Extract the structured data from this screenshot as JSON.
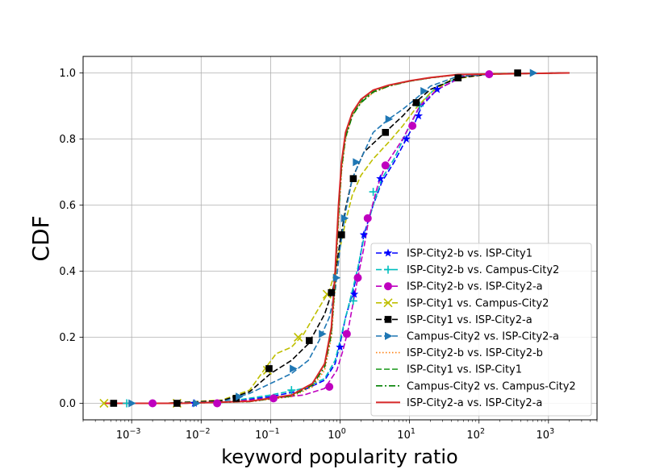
{
  "chart_data": {
    "type": "line",
    "xscale": "log",
    "xlabel": "keyword popularity ratio",
    "ylabel": "CDF",
    "xlim": [
      0.0002,
      5000
    ],
    "ylim": [
      -0.05,
      1.05
    ],
    "grid": true,
    "legend_position": "lower-right",
    "x_ticks": [
      {
        "value": 0.001,
        "base": "10",
        "exp": "−3"
      },
      {
        "value": 0.01,
        "base": "10",
        "exp": "−2"
      },
      {
        "value": 0.1,
        "base": "10",
        "exp": "−1"
      },
      {
        "value": 1,
        "base": "10",
        "exp": "0"
      },
      {
        "value": 10,
        "base": "10",
        "exp": "1"
      },
      {
        "value": 100,
        "base": "10",
        "exp": "2"
      },
      {
        "value": 1000,
        "base": "10",
        "exp": "3"
      }
    ],
    "y_ticks": [
      {
        "value": 0.0,
        "label": "0.0"
      },
      {
        "value": 0.2,
        "label": "0.2"
      },
      {
        "value": 0.4,
        "label": "0.4"
      },
      {
        "value": 0.6,
        "label": "0.6"
      },
      {
        "value": 0.8,
        "label": "0.8"
      },
      {
        "value": 1.0,
        "label": "1.0"
      }
    ],
    "series": [
      {
        "name": "ISP-City2-b vs. ISP-City1",
        "color": "#0000ff",
        "dash": "dashed",
        "marker": "star",
        "points": [
          [
            0.0004,
            0.0
          ],
          [
            0.003,
            0.0
          ],
          [
            0.02,
            0.003
          ],
          [
            0.1,
            0.02
          ],
          [
            0.3,
            0.04
          ],
          [
            0.6,
            0.07
          ],
          [
            0.85,
            0.12
          ],
          [
            1.0,
            0.18
          ],
          [
            1.2,
            0.26
          ],
          [
            1.5,
            0.33
          ],
          [
            1.8,
            0.4
          ],
          [
            2.2,
            0.51
          ],
          [
            3.0,
            0.6
          ],
          [
            4.0,
            0.67
          ],
          [
            6.0,
            0.73
          ],
          [
            9.0,
            0.8
          ],
          [
            12.0,
            0.85
          ],
          [
            15.0,
            0.9
          ],
          [
            25.0,
            0.95
          ],
          [
            60.0,
            0.99
          ],
          [
            200.0,
            0.998
          ],
          [
            2000.0,
            1.0
          ]
        ],
        "markers": [
          [
            0.008,
            0.0
          ],
          [
            1.0,
            0.17
          ],
          [
            1.6,
            0.33
          ],
          [
            2.2,
            0.51
          ],
          [
            3.8,
            0.68
          ],
          [
            9.0,
            0.8
          ],
          [
            13.5,
            0.87
          ],
          [
            25.0,
            0.95
          ]
        ]
      },
      {
        "name": "ISP-City2-b vs. Campus-City2",
        "color": "#00bfbf",
        "dash": "dashed",
        "marker": "plus",
        "points": [
          [
            0.0004,
            0.0
          ],
          [
            0.003,
            0.0
          ],
          [
            0.02,
            0.003
          ],
          [
            0.1,
            0.025
          ],
          [
            0.3,
            0.045
          ],
          [
            0.6,
            0.075
          ],
          [
            0.85,
            0.13
          ],
          [
            1.0,
            0.19
          ],
          [
            1.2,
            0.26
          ],
          [
            1.5,
            0.34
          ],
          [
            1.8,
            0.41
          ],
          [
            2.2,
            0.5
          ],
          [
            3.0,
            0.6
          ],
          [
            4.0,
            0.68
          ],
          [
            6.0,
            0.74
          ],
          [
            9.0,
            0.82
          ],
          [
            12.0,
            0.87
          ],
          [
            15.0,
            0.91
          ],
          [
            25.0,
            0.96
          ],
          [
            60.0,
            0.99
          ],
          [
            200.0,
            0.998
          ],
          [
            2000.0,
            1.0
          ]
        ],
        "markers": [
          [
            0.00085,
            0.0
          ],
          [
            0.2,
            0.04
          ],
          [
            1.55,
            0.31
          ],
          [
            3.0,
            0.64
          ],
          [
            14.0,
            0.9
          ]
        ]
      },
      {
        "name": "ISP-City2-b vs. ISP-City2-a",
        "color": "#bf00bf",
        "dash": "dashed",
        "marker": "circle",
        "points": [
          [
            0.0004,
            0.0
          ],
          [
            0.003,
            0.0
          ],
          [
            0.02,
            0.003
          ],
          [
            0.1,
            0.015
          ],
          [
            0.3,
            0.025
          ],
          [
            0.6,
            0.045
          ],
          [
            0.9,
            0.1
          ],
          [
            1.1,
            0.16
          ],
          [
            1.3,
            0.22
          ],
          [
            1.5,
            0.29
          ],
          [
            1.8,
            0.38
          ],
          [
            2.2,
            0.47
          ],
          [
            2.6,
            0.56
          ],
          [
            3.5,
            0.66
          ],
          [
            4.5,
            0.72
          ],
          [
            6.0,
            0.76
          ],
          [
            8.0,
            0.8
          ],
          [
            10.0,
            0.84
          ],
          [
            14.0,
            0.9
          ],
          [
            25.0,
            0.95
          ],
          [
            60.0,
            0.99
          ],
          [
            200.0,
            0.998
          ],
          [
            2000.0,
            1.0
          ]
        ],
        "markers": [
          [
            0.002,
            0.0
          ],
          [
            0.017,
            0.0
          ],
          [
            0.11,
            0.015
          ],
          [
            0.7,
            0.05
          ],
          [
            1.25,
            0.21
          ],
          [
            1.8,
            0.38
          ],
          [
            2.5,
            0.56
          ],
          [
            4.5,
            0.72
          ],
          [
            11.0,
            0.84
          ],
          [
            140.0,
            0.996
          ]
        ]
      },
      {
        "name": "ISP-City1 vs. Campus-City2",
        "color": "#bfbf00",
        "dash": "dashed",
        "marker": "x",
        "points": [
          [
            0.0004,
            0.0
          ],
          [
            0.003,
            0.0
          ],
          [
            0.02,
            0.01
          ],
          [
            0.05,
            0.04
          ],
          [
            0.08,
            0.1
          ],
          [
            0.12,
            0.15
          ],
          [
            0.2,
            0.17
          ],
          [
            0.3,
            0.21
          ],
          [
            0.5,
            0.29
          ],
          [
            0.7,
            0.34
          ],
          [
            0.85,
            0.4
          ],
          [
            1.0,
            0.47
          ],
          [
            1.2,
            0.55
          ],
          [
            1.5,
            0.63
          ],
          [
            2.0,
            0.69
          ],
          [
            3.0,
            0.74
          ],
          [
            5.0,
            0.79
          ],
          [
            8.0,
            0.84
          ],
          [
            12.0,
            0.89
          ],
          [
            20.0,
            0.94
          ],
          [
            40.0,
            0.98
          ],
          [
            150.0,
            0.998
          ],
          [
            2000.0,
            1.0
          ]
        ],
        "markers": [
          [
            0.0004,
            0.0
          ],
          [
            0.0045,
            0.0
          ],
          [
            0.09,
            0.1
          ],
          [
            0.25,
            0.2
          ],
          [
            0.65,
            0.33
          ]
        ]
      },
      {
        "name": "ISP-City1 vs. ISP-City2-a",
        "color": "#000000",
        "dash": "dashed",
        "marker": "square",
        "points": [
          [
            0.0004,
            0.0
          ],
          [
            0.003,
            0.0
          ],
          [
            0.02,
            0.008
          ],
          [
            0.05,
            0.035
          ],
          [
            0.1,
            0.09
          ],
          [
            0.2,
            0.13
          ],
          [
            0.35,
            0.18
          ],
          [
            0.6,
            0.27
          ],
          [
            0.8,
            0.35
          ],
          [
            1.0,
            0.49
          ],
          [
            1.2,
            0.59
          ],
          [
            1.5,
            0.68
          ],
          [
            2.2,
            0.76
          ],
          [
            3.5,
            0.8
          ],
          [
            5.0,
            0.83
          ],
          [
            8.0,
            0.87
          ],
          [
            12.0,
            0.91
          ],
          [
            20.0,
            0.95
          ],
          [
            50.0,
            0.985
          ],
          [
            150.0,
            0.997
          ],
          [
            2000.0,
            1.0
          ]
        ],
        "markers": [
          [
            0.00055,
            0.0
          ],
          [
            0.0045,
            0.0
          ],
          [
            0.032,
            0.015
          ],
          [
            0.095,
            0.105
          ],
          [
            0.36,
            0.19
          ],
          [
            0.75,
            0.335
          ],
          [
            1.05,
            0.51
          ],
          [
            1.55,
            0.68
          ],
          [
            4.5,
            0.82
          ],
          [
            12.5,
            0.91
          ],
          [
            50.0,
            0.985
          ],
          [
            360.0,
            1.0
          ]
        ]
      },
      {
        "name": "Campus-City2 vs. ISP-City2-a",
        "color": "#1f77b4",
        "dash": "dashed",
        "marker": "triangle-right",
        "points": [
          [
            0.0004,
            0.0
          ],
          [
            0.003,
            0.0
          ],
          [
            0.02,
            0.005
          ],
          [
            0.05,
            0.03
          ],
          [
            0.1,
            0.06
          ],
          [
            0.2,
            0.09
          ],
          [
            0.35,
            0.13
          ],
          [
            0.5,
            0.19
          ],
          [
            0.7,
            0.26
          ],
          [
            0.85,
            0.34
          ],
          [
            1.0,
            0.47
          ],
          [
            1.2,
            0.58
          ],
          [
            1.5,
            0.68
          ],
          [
            2.0,
            0.74
          ],
          [
            3.0,
            0.82
          ],
          [
            5.0,
            0.86
          ],
          [
            8.0,
            0.89
          ],
          [
            12.0,
            0.92
          ],
          [
            20.0,
            0.96
          ],
          [
            50.0,
            0.99
          ],
          [
            200.0,
            0.998
          ],
          [
            2000.0,
            1.0
          ]
        ],
        "markers": [
          [
            0.001,
            0.0
          ],
          [
            0.0085,
            0.0
          ],
          [
            0.035,
            0.02
          ],
          [
            0.21,
            0.105
          ],
          [
            0.55,
            0.21
          ],
          [
            0.88,
            0.38
          ],
          [
            1.15,
            0.56
          ],
          [
            1.7,
            0.73
          ],
          [
            5.0,
            0.86
          ],
          [
            16.0,
            0.945
          ],
          [
            600.0,
            1.0
          ]
        ]
      },
      {
        "name": "ISP-City2-b vs. ISP-City2-b",
        "color": "#ff7f0e",
        "dash": "dotted",
        "marker": "none",
        "points": [
          [
            0.0004,
            0.0
          ],
          [
            0.005,
            0.0
          ],
          [
            0.05,
            0.005
          ],
          [
            0.2,
            0.02
          ],
          [
            0.4,
            0.05
          ],
          [
            0.6,
            0.1
          ],
          [
            0.75,
            0.2
          ],
          [
            0.85,
            0.35
          ],
          [
            0.95,
            0.55
          ],
          [
            1.05,
            0.7
          ],
          [
            1.2,
            0.8
          ],
          [
            1.5,
            0.87
          ],
          [
            2.0,
            0.91
          ],
          [
            3.0,
            0.94
          ],
          [
            5.0,
            0.96
          ],
          [
            10.0,
            0.975
          ],
          [
            20.0,
            0.985
          ],
          [
            50.0,
            0.995
          ],
          [
            2000.0,
            1.0
          ]
        ]
      },
      {
        "name": "ISP-City1 vs. ISP-City1",
        "color": "#2ca02c",
        "dash": "dashed",
        "marker": "none",
        "points": [
          [
            0.0004,
            0.0
          ],
          [
            0.005,
            0.0
          ],
          [
            0.05,
            0.006
          ],
          [
            0.2,
            0.025
          ],
          [
            0.4,
            0.06
          ],
          [
            0.6,
            0.12
          ],
          [
            0.75,
            0.22
          ],
          [
            0.85,
            0.38
          ],
          [
            0.95,
            0.58
          ],
          [
            1.05,
            0.72
          ],
          [
            1.2,
            0.81
          ],
          [
            1.5,
            0.875
          ],
          [
            2.0,
            0.915
          ],
          [
            3.0,
            0.945
          ],
          [
            5.0,
            0.962
          ],
          [
            10.0,
            0.975
          ],
          [
            20.0,
            0.985
          ],
          [
            50.0,
            0.995
          ],
          [
            2000.0,
            1.0
          ]
        ]
      },
      {
        "name": "Campus-City2 vs. Campus-City2",
        "color": "#007f00",
        "dash": "dashdot",
        "marker": "none",
        "points": [
          [
            0.0004,
            0.0
          ],
          [
            0.005,
            0.0
          ],
          [
            0.05,
            0.005
          ],
          [
            0.2,
            0.022
          ],
          [
            0.4,
            0.055
          ],
          [
            0.6,
            0.11
          ],
          [
            0.75,
            0.21
          ],
          [
            0.85,
            0.37
          ],
          [
            0.95,
            0.57
          ],
          [
            1.05,
            0.71
          ],
          [
            1.2,
            0.805
          ],
          [
            1.5,
            0.87
          ],
          [
            2.0,
            0.91
          ],
          [
            3.0,
            0.942
          ],
          [
            5.0,
            0.96
          ],
          [
            10.0,
            0.975
          ],
          [
            20.0,
            0.985
          ],
          [
            50.0,
            0.995
          ],
          [
            2000.0,
            1.0
          ]
        ]
      },
      {
        "name": "ISP-City2-a vs. ISP-City2-a",
        "color": "#d62728",
        "dash": "solid",
        "marker": "none",
        "points": [
          [
            0.0004,
            0.0
          ],
          [
            0.005,
            0.0
          ],
          [
            0.05,
            0.006
          ],
          [
            0.2,
            0.025
          ],
          [
            0.4,
            0.06
          ],
          [
            0.6,
            0.12
          ],
          [
            0.75,
            0.23
          ],
          [
            0.85,
            0.4
          ],
          [
            0.95,
            0.6
          ],
          [
            1.05,
            0.73
          ],
          [
            1.2,
            0.82
          ],
          [
            1.5,
            0.88
          ],
          [
            2.0,
            0.92
          ],
          [
            3.0,
            0.948
          ],
          [
            5.0,
            0.963
          ],
          [
            10.0,
            0.976
          ],
          [
            20.0,
            0.986
          ],
          [
            50.0,
            0.995
          ],
          [
            2000.0,
            1.0
          ]
        ]
      }
    ]
  }
}
